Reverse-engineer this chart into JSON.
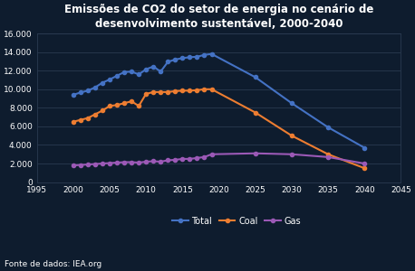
{
  "title": "Emissões de CO2 do setor de energia no cenário de\ndesenvolvimento sustentável, 2000-2040",
  "source_text": "Fonte de dados: IEA.org",
  "background_color": "#0e1c2e",
  "plot_bg_color": "#0e1c2e",
  "grid_color": "#2a3a50",
  "text_color": "#ffffff",
  "xlim": [
    1995,
    2045
  ],
  "ylim": [
    0,
    16000
  ],
  "xticks": [
    1995,
    2000,
    2005,
    2010,
    2015,
    2020,
    2025,
    2030,
    2035,
    2040,
    2045
  ],
  "yticks": [
    0,
    2000,
    4000,
    6000,
    8000,
    10000,
    12000,
    14000,
    16000
  ],
  "series": {
    "Total": {
      "color": "#4472c4",
      "x": [
        2000,
        2001,
        2002,
        2003,
        2004,
        2005,
        2006,
        2007,
        2008,
        2009,
        2010,
        2011,
        2012,
        2013,
        2014,
        2015,
        2016,
        2017,
        2018,
        2019,
        2025,
        2030,
        2035,
        2040
      ],
      "y": [
        9400,
        9650,
        9850,
        10200,
        10700,
        11050,
        11450,
        11850,
        11900,
        11600,
        12150,
        12450,
        11900,
        12950,
        13200,
        13350,
        13450,
        13500,
        13700,
        13800,
        11300,
        8500,
        5900,
        3700
      ]
    },
    "Coal": {
      "color": "#ed7d31",
      "x": [
        2000,
        2001,
        2002,
        2003,
        2004,
        2005,
        2006,
        2007,
        2008,
        2009,
        2010,
        2011,
        2012,
        2013,
        2014,
        2015,
        2016,
        2017,
        2018,
        2019,
        2025,
        2030,
        2035,
        2040
      ],
      "y": [
        6500,
        6700,
        6900,
        7300,
        7700,
        8200,
        8300,
        8500,
        8700,
        8200,
        9500,
        9700,
        9700,
        9700,
        9800,
        9850,
        9850,
        9900,
        10000,
        10000,
        7500,
        5000,
        3000,
        1500
      ]
    },
    "Gas": {
      "color": "#9b59b6",
      "x": [
        2000,
        2001,
        2002,
        2003,
        2004,
        2005,
        2006,
        2007,
        2008,
        2009,
        2010,
        2011,
        2012,
        2013,
        2014,
        2015,
        2016,
        2017,
        2018,
        2019,
        2025,
        2030,
        2035,
        2040
      ],
      "y": [
        1800,
        1850,
        1900,
        1950,
        2000,
        2050,
        2100,
        2150,
        2150,
        2100,
        2200,
        2250,
        2200,
        2350,
        2400,
        2500,
        2500,
        2600,
        2700,
        3000,
        3100,
        3000,
        2700,
        2000
      ]
    }
  }
}
